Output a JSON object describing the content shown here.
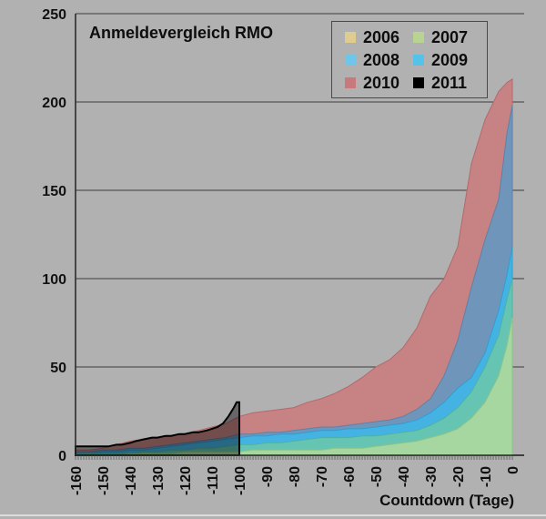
{
  "window": {
    "background_color": "#b1b1b1",
    "bottom_strip_color": "#dcdcdc"
  },
  "chart_data": {
    "type": "area",
    "title": "Anmeldevergleich RMO",
    "xlabel": "Countdown (Tage)",
    "ylabel": "",
    "x_range": [
      -160,
      0
    ],
    "y_range": [
      0,
      250
    ],
    "grid": "horizontal",
    "gridline_color": "#3d3d3d",
    "axis_color": "#2b2b2b",
    "legend_position": "top-right",
    "y_ticks": [
      0,
      50,
      100,
      150,
      200,
      250
    ],
    "x_ticks": [
      -160,
      -150,
      -140,
      -130,
      -120,
      -110,
      -100,
      -90,
      -80,
      -70,
      -60,
      -50,
      -40,
      -30,
      -20,
      -10,
      0
    ],
    "minor_tick_every_days": 1,
    "days": [
      -160,
      -155,
      -150,
      -145,
      -140,
      -135,
      -130,
      -125,
      -120,
      -115,
      -110,
      -105,
      -100,
      -95,
      -90,
      -85,
      -80,
      -75,
      -70,
      -65,
      -60,
      -55,
      -50,
      -45,
      -40,
      -35,
      -30,
      -25,
      -20,
      -15,
      -10,
      -5,
      -2,
      0
    ],
    "draw_order": [
      "2010",
      "2009",
      "2008",
      "2007",
      "2006",
      "2011"
    ],
    "series": [
      {
        "name": "2006",
        "legend_color": "#dfcc8f",
        "band_color": "#a6d7a0",
        "edge_color": "#8cc487",
        "values": [
          0,
          0,
          0,
          0,
          1,
          1,
          1,
          1,
          2,
          2,
          2,
          2,
          2,
          3,
          3,
          3,
          3,
          3,
          3,
          4,
          4,
          4,
          5,
          6,
          7,
          8,
          10,
          12,
          15,
          21,
          30,
          45,
          62,
          78
        ]
      },
      {
        "name": "2007",
        "legend_color": "#b9d492",
        "band_color": "#66c5b2",
        "edge_color": "#4db3a0",
        "values": [
          1,
          1,
          1,
          1,
          1,
          2,
          2,
          3,
          3,
          4,
          4,
          5,
          6,
          6,
          7,
          7,
          8,
          9,
          10,
          10,
          10,
          11,
          11,
          12,
          13,
          14,
          17,
          21,
          27,
          36,
          50,
          68,
          88,
          100
        ]
      },
      {
        "name": "2008",
        "legend_color": "#70c6e8",
        "band_color": "#44b3e4",
        "edge_color": "#2d9fd0",
        "values": [
          1,
          1,
          2,
          2,
          3,
          3,
          4,
          5,
          6,
          7,
          8,
          9,
          10,
          11,
          11,
          12,
          12,
          13,
          14,
          14,
          15,
          15,
          16,
          17,
          18,
          20,
          24,
          30,
          38,
          44,
          58,
          82,
          102,
          118
        ]
      },
      {
        "name": "2009",
        "legend_color": "#55c2ea",
        "band_color": "#7095ba",
        "edge_color": "#5b82a8",
        "values": [
          2,
          2,
          3,
          3,
          4,
          4,
          5,
          6,
          7,
          8,
          9,
          10,
          12,
          12,
          13,
          13,
          14,
          15,
          16,
          16,
          17,
          18,
          19,
          20,
          22,
          26,
          32,
          45,
          65,
          95,
          122,
          145,
          182,
          198
        ]
      },
      {
        "name": "2010",
        "legend_color": "#c8797b",
        "band_color": "#c78384",
        "edge_color": "#b4696c",
        "values": [
          3,
          3,
          4,
          6,
          8,
          9,
          10,
          11,
          12,
          14,
          16,
          18,
          22,
          24,
          25,
          26,
          27,
          30,
          32,
          35,
          39,
          44,
          50,
          54,
          61,
          72,
          90,
          100,
          118,
          165,
          190,
          206,
          211,
          213
        ]
      },
      {
        "name": "2011",
        "legend_color": "#000000",
        "band_color": "rgba(0,0,0,0.42)",
        "edge_color": "#000000",
        "edge_width": 2,
        "ends_at": -100,
        "days": [
          -160,
          -155,
          -150,
          -148,
          -145,
          -143,
          -140,
          -138,
          -135,
          -132,
          -130,
          -127,
          -125,
          -122,
          -120,
          -117,
          -115,
          -112,
          -110,
          -108,
          -106,
          -104,
          -102,
          -101,
          -100
        ],
        "values": [
          5,
          5,
          5,
          5,
          6,
          6,
          7,
          8,
          9,
          10,
          10,
          11,
          11,
          12,
          12,
          13,
          13,
          14,
          15,
          16,
          18,
          22,
          27,
          30,
          30
        ]
      }
    ]
  }
}
